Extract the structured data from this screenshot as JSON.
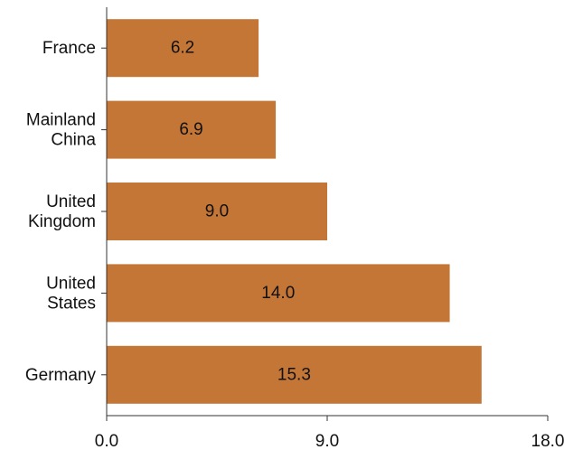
{
  "chart_data": {
    "type": "bar",
    "orientation": "horizontal",
    "categories": [
      [
        "France"
      ],
      [
        "Mainland",
        "China"
      ],
      [
        "United",
        "Kingdom"
      ],
      [
        "United",
        "States"
      ],
      [
        "Germany"
      ]
    ],
    "values": [
      6.2,
      6.9,
      9.0,
      14.0,
      15.3
    ],
    "value_labels": [
      "6.2",
      "6.9",
      "9.0",
      "14.0",
      "15.3"
    ],
    "xlim": [
      0,
      18
    ],
    "xticks": [
      0,
      9,
      18
    ],
    "xtick_labels": [
      "0.0",
      "9.0",
      "18.0"
    ],
    "grid": false,
    "colors": {
      "bar": "#c47636",
      "axis": "#333333",
      "text": "#111111"
    }
  }
}
